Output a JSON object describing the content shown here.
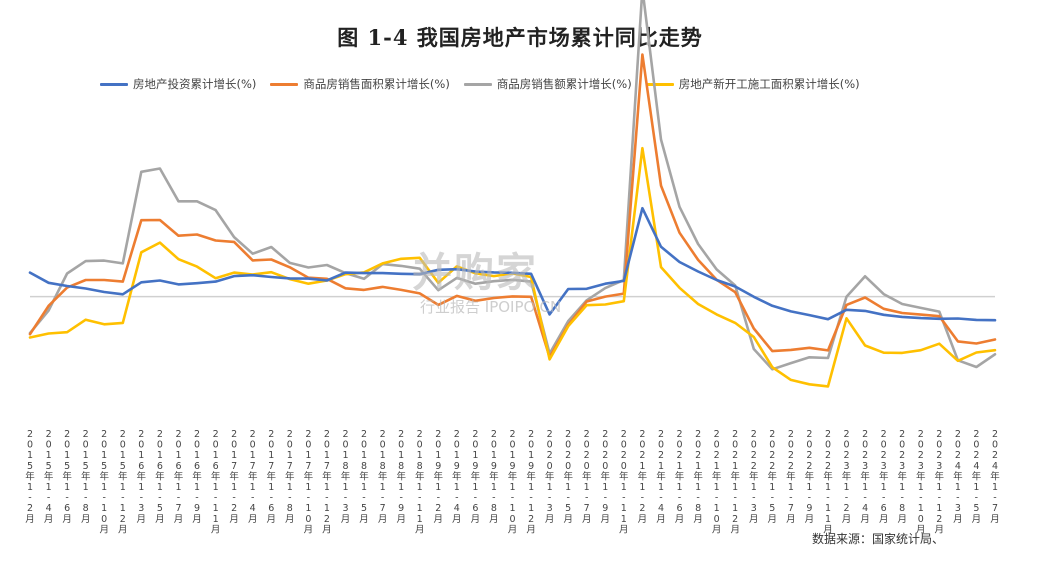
{
  "title": "图 1-4 我国房地产市场累计同比走势",
  "source": "数据来源：国家统计局、",
  "watermark": {
    "logo": "并购家",
    "sub": "行业报告 IPOIPO.CN"
  },
  "chart_data": {
    "type": "line",
    "categories": [
      "2015年1-2月",
      "2015年1-4月",
      "2015年1-6月",
      "2015年1-8月",
      "2015年1-10月",
      "2015年1-12月",
      "2016年1-3月",
      "2016年1-5月",
      "2016年1-7月",
      "2016年1-9月",
      "2016年1-11月",
      "2017年1-2月",
      "2017年1-4月",
      "2017年1-6月",
      "2017年1-8月",
      "2017年1-10月",
      "2017年1-12月",
      "2018年1-3月",
      "2018年1-5月",
      "2018年1-7月",
      "2018年1-9月",
      "2018年1-11月",
      "2019年1-2月",
      "2019年1-4月",
      "2019年1-6月",
      "2019年1-8月",
      "2019年1-10月",
      "2019年1-12月",
      "2020年1-3月",
      "2020年1-5月",
      "2020年1-7月",
      "2020年1-9月",
      "2020年1-11月",
      "2021年1-2月",
      "2021年1-4月",
      "2021年1-6月",
      "2021年1-8月",
      "2021年1-10月",
      "2021年1-12月",
      "2022年1-3月",
      "2022年1-5月",
      "2022年1-7月",
      "2022年1-9月",
      "2022年1-11月",
      "2023年1-2月",
      "2023年1-4月",
      "2023年1-6月",
      "2023年1-8月",
      "2023年1-10月",
      "2023年1-12月",
      "2024年1-3月",
      "2024年1-5月",
      "2024年1-7月"
    ],
    "ylim": [
      -50,
      80
    ],
    "zero_line": true,
    "grid": false,
    "legend_position": "top",
    "series": [
      {
        "name": "房地产投资累计增长(%)",
        "color": "#4472C4",
        "values": [
          10.4,
          6.0,
          4.6,
          3.5,
          2.0,
          1.0,
          6.2,
          7.0,
          5.3,
          5.8,
          6.5,
          8.9,
          9.3,
          8.5,
          7.9,
          7.8,
          7.0,
          10.4,
          10.2,
          10.2,
          9.9,
          9.7,
          11.6,
          11.9,
          10.9,
          10.5,
          10.3,
          9.9,
          -7.7,
          3.3,
          3.4,
          5.6,
          6.8,
          38.3,
          21.6,
          15.0,
          10.9,
          7.2,
          4.4,
          -0.1,
          -4.0,
          -6.4,
          -8.0,
          -9.8,
          -5.7,
          -6.2,
          -7.9,
          -8.8,
          -9.3,
          -9.6,
          -9.5,
          -10.1,
          -10.2
        ]
      },
      {
        "name": "商品房销售面积累计增长(%)",
        "color": "#ED7D31",
        "values": [
          -16.3,
          -4.0,
          3.9,
          7.2,
          7.2,
          6.5,
          33.1,
          33.2,
          26.4,
          26.9,
          24.3,
          23.7,
          15.7,
          16.1,
          12.7,
          8.2,
          7.7,
          3.6,
          2.9,
          4.2,
          2.9,
          1.4,
          -3.6,
          0.3,
          -1.8,
          -0.6,
          0.1,
          -0.1,
          -26.3,
          -12.3,
          -2.1,
          0.0,
          1.3,
          104.9,
          48.1,
          27.7,
          15.9,
          7.3,
          1.9,
          -13.8,
          -23.6,
          -23.1,
          -22.2,
          -23.3,
          -3.6,
          -0.4,
          -5.3,
          -7.1,
          -7.8,
          -8.5,
          -19.4,
          -20.3,
          -18.6
        ]
      },
      {
        "name": "商品房销售额累计增长(%)",
        "color": "#A5A5A5",
        "values": [
          -15.8,
          -6.0,
          10.0,
          15.4,
          15.6,
          14.4,
          54.1,
          55.5,
          41.3,
          41.3,
          37.5,
          25.8,
          18.6,
          21.5,
          14.6,
          12.6,
          13.7,
          10.2,
          7.7,
          14.1,
          13.3,
          12.1,
          2.8,
          8.1,
          5.6,
          6.7,
          7.3,
          6.5,
          -24.7,
          -10.6,
          -1.6,
          3.7,
          7.2,
          133.4,
          68.1,
          38.9,
          22.8,
          11.8,
          4.8,
          -22.7,
          -31.5,
          -28.8,
          -26.3,
          -26.6,
          -0.1,
          8.8,
          1.1,
          -3.2,
          -4.9,
          -6.5,
          -27.6,
          -30.5,
          -25.0
        ]
      },
      {
        "name": "房地产新开工施工面积累计增长(%)",
        "color": "#FFC000",
        "values": [
          -17.7,
          -16.0,
          -15.4,
          -10.0,
          -12.0,
          -11.4,
          19.2,
          23.4,
          16.2,
          13.0,
          8.0,
          10.4,
          9.6,
          10.6,
          7.6,
          5.6,
          7.0,
          9.7,
          10.5,
          14.4,
          16.4,
          16.8,
          6.0,
          13.1,
          10.1,
          8.9,
          10.0,
          8.5,
          -27.2,
          -12.8,
          -3.7,
          -3.4,
          -2.0,
          64.3,
          12.8,
          3.8,
          -3.2,
          -7.7,
          -11.4,
          -17.5,
          -30.6,
          -36.1,
          -38.0,
          -38.9,
          -9.4,
          -21.2,
          -24.3,
          -24.4,
          -23.2,
          -20.4,
          -27.8,
          -24.2,
          -23.2
        ]
      }
    ]
  }
}
